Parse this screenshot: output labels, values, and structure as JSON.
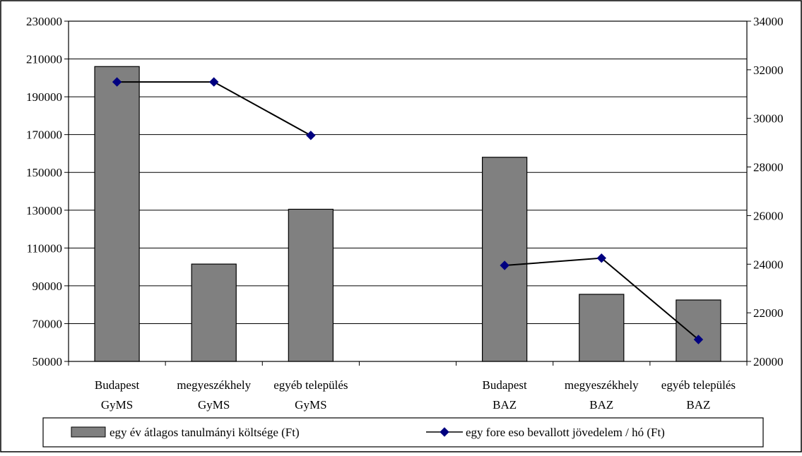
{
  "chart_data": {
    "type": "bar",
    "categories": [
      [
        "Budapest",
        "GyMS"
      ],
      [
        "megyeszékhely",
        "GyMS"
      ],
      [
        "egyéb település",
        "GyMS"
      ],
      [
        "",
        ""
      ],
      [
        "Budapest",
        "BAZ"
      ],
      [
        "megyeszékhely",
        "BAZ"
      ],
      [
        "egyéb település",
        "BAZ"
      ]
    ],
    "series": [
      {
        "name": "egy év átlagos tanulmányi költsége (Ft)",
        "type": "bar",
        "axis": "left",
        "color": "#808080",
        "values": [
          206000,
          101500,
          130500,
          null,
          158000,
          85500,
          82500
        ]
      },
      {
        "name": "egy fore eso bevallott jövedelem / hó (Ft)",
        "type": "line",
        "axis": "right",
        "color": "#000080",
        "line_color": "#000000",
        "marker": "diamond",
        "values": [
          31500,
          31500,
          29300,
          null,
          23950,
          24250,
          20900
        ]
      }
    ],
    "y_left": {
      "ylim": [
        50000,
        230000
      ],
      "ticks": [
        "230000",
        "210000",
        "190000",
        "170000",
        "150000",
        "130000",
        "110000",
        "90000",
        "70000",
        "50000"
      ]
    },
    "y_right": {
      "ylim": [
        20000,
        34000
      ],
      "ticks": [
        "34000",
        "32000",
        "30000",
        "28000",
        "26000",
        "24000",
        "22000",
        "20000"
      ]
    },
    "grid": true,
    "legend_position": "bottom",
    "title": "",
    "xlabel": "",
    "ylabel": ""
  }
}
